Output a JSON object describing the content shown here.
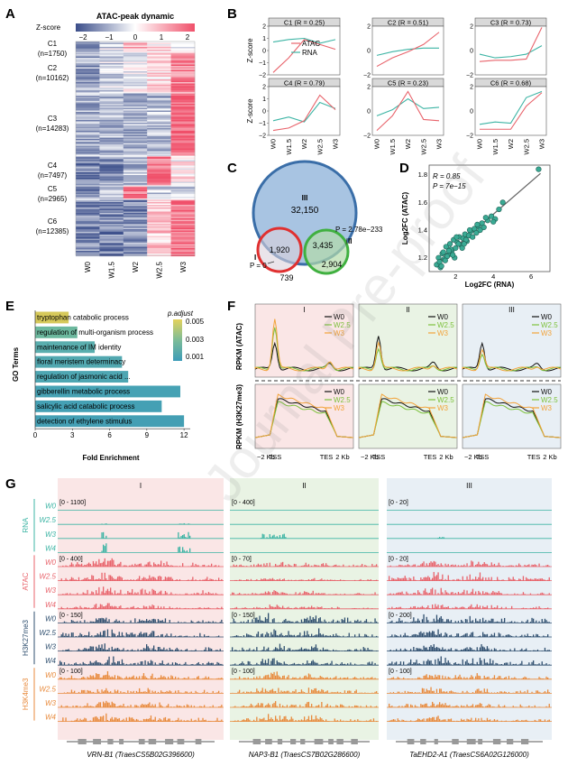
{
  "panelA": {
    "label": "A",
    "title": "ATAC-peak dynamic",
    "zscore_label": "Z-score",
    "zscore_ticks": [
      "−2",
      "−1",
      "0",
      "1",
      "2"
    ],
    "clusters": [
      {
        "name": "C1",
        "n": "(n=1750)"
      },
      {
        "name": "C2",
        "n": "(n=10162)"
      },
      {
        "name": "C3",
        "n": "(n=14283)"
      },
      {
        "name": "C4",
        "n": "(n=7497)"
      },
      {
        "name": "C5",
        "n": "(n=2965)"
      },
      {
        "name": "C6",
        "n": "(n=12385)"
      }
    ],
    "columns": [
      "W0",
      "W1.5",
      "W2",
      "W2.5",
      "W3"
    ]
  },
  "panelB": {
    "label": "B",
    "ylabel": "Z-score",
    "legend": [
      "ATAC",
      "RNA"
    ],
    "colors": {
      "atac": "#e8636b",
      "rna": "#3cb4a4"
    },
    "xticks": [
      "W0",
      "W1.5",
      "W2",
      "W2.5",
      "W3"
    ],
    "yticks": [
      "2",
      "1",
      "0",
      "−1",
      "−2"
    ],
    "ytick_vals": [
      2,
      1,
      0,
      -1,
      -2
    ],
    "panels": [
      {
        "title": "C1 (R = 0.25)",
        "atac": [
          -1.8,
          -0.6,
          0.9,
          0.5,
          0.1
        ],
        "rna": [
          0.7,
          0.9,
          1.0,
          0.6,
          0.9
        ]
      },
      {
        "title": "C2 (R = 0.51)",
        "atac": [
          -1.3,
          -0.6,
          -0.1,
          0.5,
          1.5
        ],
        "rna": [
          -0.4,
          -0.1,
          0.1,
          0.2,
          0.2
        ]
      },
      {
        "title": "C3 (R = 0.73)",
        "atac": [
          -0.9,
          -0.8,
          -0.8,
          -0.7,
          1.9
        ],
        "rna": [
          -0.3,
          -0.6,
          -0.5,
          -0.3,
          0.4
        ]
      },
      {
        "title": "C4 (R = 0.79)",
        "atac": [
          -1.6,
          -1.4,
          -0.8,
          1.3,
          0.1
        ],
        "rna": [
          -0.8,
          -0.5,
          -0.9,
          0.7,
          0.2
        ]
      },
      {
        "title": "C5 (R = 0.23)",
        "atac": [
          -1.6,
          -0.4,
          1.6,
          -0.7,
          -0.8
        ],
        "rna": [
          -0.4,
          0.1,
          1.0,
          0.2,
          0.3
        ]
      },
      {
        "title": "C6 (R = 0.68)",
        "atac": [
          -1.5,
          -1.5,
          -1.5,
          0.4,
          1.5
        ],
        "rna": [
          -1.1,
          -0.9,
          -1.0,
          1.1,
          1.6
        ]
      }
    ]
  },
  "panelC": {
    "label": "C",
    "regions": {
      "III": "III",
      "II": "II",
      "I": "I"
    },
    "values": {
      "big": "32,150",
      "red": "1,920",
      "overlap": "3,435",
      "green": "2,904",
      "bottom": "739"
    },
    "p_upper": "P = 2.78e−233",
    "p_lower": "P = 0"
  },
  "panelD": {
    "label": "D",
    "r_text": "R = 0.85",
    "p_text": "P = 7e−15",
    "xlabel": "Log2FC (RNA)",
    "ylabel": "Log2FC (ATAC)",
    "xticks": [
      "2",
      "4",
      "6"
    ],
    "yticks": [
      "1.2",
      "1.4",
      "1.6",
      "1.8"
    ],
    "chart_data": {
      "type": "scatter",
      "xlim": [
        0.6,
        7.0
      ],
      "ylim": [
        1.1,
        1.87
      ],
      "x": [
        1.0,
        1.1,
        1.2,
        1.3,
        1.4,
        1.5,
        1.6,
        1.7,
        1.8,
        1.9,
        2.0,
        2.1,
        2.2,
        2.3,
        2.4,
        2.5,
        2.6,
        2.7,
        2.8,
        2.9,
        3.0,
        3.1,
        3.2,
        3.3,
        3.4,
        3.5,
        3.7,
        3.9,
        4.1,
        4.3,
        4.5,
        1.15,
        1.35,
        1.55,
        1.75,
        1.95,
        2.15,
        2.35,
        2.55,
        2.75,
        1.25,
        1.45,
        1.65,
        1.85,
        2.05,
        2.45,
        3.15,
        3.6,
        4.0,
        6.4
      ],
      "y": [
        1.15,
        1.2,
        1.13,
        1.23,
        1.19,
        1.28,
        1.22,
        1.3,
        1.25,
        1.33,
        1.27,
        1.31,
        1.35,
        1.29,
        1.34,
        1.37,
        1.32,
        1.36,
        1.39,
        1.35,
        1.41,
        1.38,
        1.43,
        1.4,
        1.45,
        1.42,
        1.47,
        1.5,
        1.48,
        1.55,
        1.6,
        1.17,
        1.24,
        1.21,
        1.26,
        1.2,
        1.3,
        1.27,
        1.33,
        1.4,
        1.14,
        1.18,
        1.25,
        1.22,
        1.35,
        1.3,
        1.44,
        1.49,
        1.46,
        1.84
      ],
      "fit": [
        [
          1.0,
          1.16
        ],
        [
          6.5,
          1.81
        ]
      ]
    }
  },
  "panelE": {
    "label": "E",
    "ylabel": "GO Terms",
    "xlabel": "Fold Enrichment",
    "legend_title": "p.adjust",
    "legend_ticks": [
      "0.005",
      "0.003",
      "0.001"
    ],
    "chart_data": {
      "type": "bar",
      "categories": [
        "tryptophan catabolic process",
        "regulation of multi-organism process",
        "maintenance of IM identity",
        "floral meristem determinacy",
        "regulation of jasmonic acid ...",
        "gibberellin metabolic process",
        "salicylic acid catabolic process",
        "detection of ethylene stimulus"
      ],
      "values": [
        2.7,
        3.4,
        4.8,
        7.0,
        7.5,
        11.7,
        10.2,
        12.0
      ],
      "colors": [
        "#d6c95a",
        "#6cb89e",
        "#5aaeae",
        "#52a8b0",
        "#4ea6b2",
        "#46a2b4",
        "#44a0b4",
        "#449fb4"
      ],
      "xlim": [
        0,
        12.5
      ],
      "xticks": [
        "0",
        "3",
        "6",
        "9",
        "12"
      ],
      "xtick_vals": [
        0,
        3,
        6,
        9,
        12
      ]
    }
  },
  "panelF": {
    "label": "F",
    "groups": [
      "I",
      "II",
      "III"
    ],
    "legend": [
      "W0",
      "W2.5",
      "W3"
    ],
    "ylabel_top": "RPKM (ATAC)",
    "ylabel_bottom": "RPKM (H3K27me3)",
    "xticks": [
      "−2 Kb",
      "TSS",
      "TES",
      "2 Kb"
    ]
  },
  "panelG": {
    "label": "G",
    "groups": [
      "I",
      "II",
      "III"
    ],
    "tracks": [
      {
        "name": "RNA",
        "color": "#3cb4a4",
        "ranges": [
          "[0 - 1100]",
          "[0 - 400]",
          "[0 - 20]"
        ]
      },
      {
        "name": "ATAC",
        "color": "#e8636b",
        "ranges": [
          "[0 - 400]",
          "[0 - 70]",
          "[0 - 20]"
        ]
      },
      {
        "name": "H3K27me3",
        "color": "#2f4f6f",
        "ranges": [
          "[0 - 150]",
          "[0 - 150]",
          "[0 - 200]"
        ]
      },
      {
        "name": "H3K4me3",
        "color": "#e88a3c",
        "ranges": [
          "[0 - 100]",
          "[0 - 100]",
          "[0 - 100]"
        ]
      }
    ],
    "samples": [
      "W0",
      "W2.5",
      "W3",
      "W4"
    ],
    "genes": [
      "VRN-B1 (TraesCS5B02G396600)",
      "NAP3-B1 (TraesCS7B02G286600)",
      "TaEHD2-A1 (TraesCS6A02G126000)"
    ]
  },
  "watermark": "Journal Pre-proof"
}
